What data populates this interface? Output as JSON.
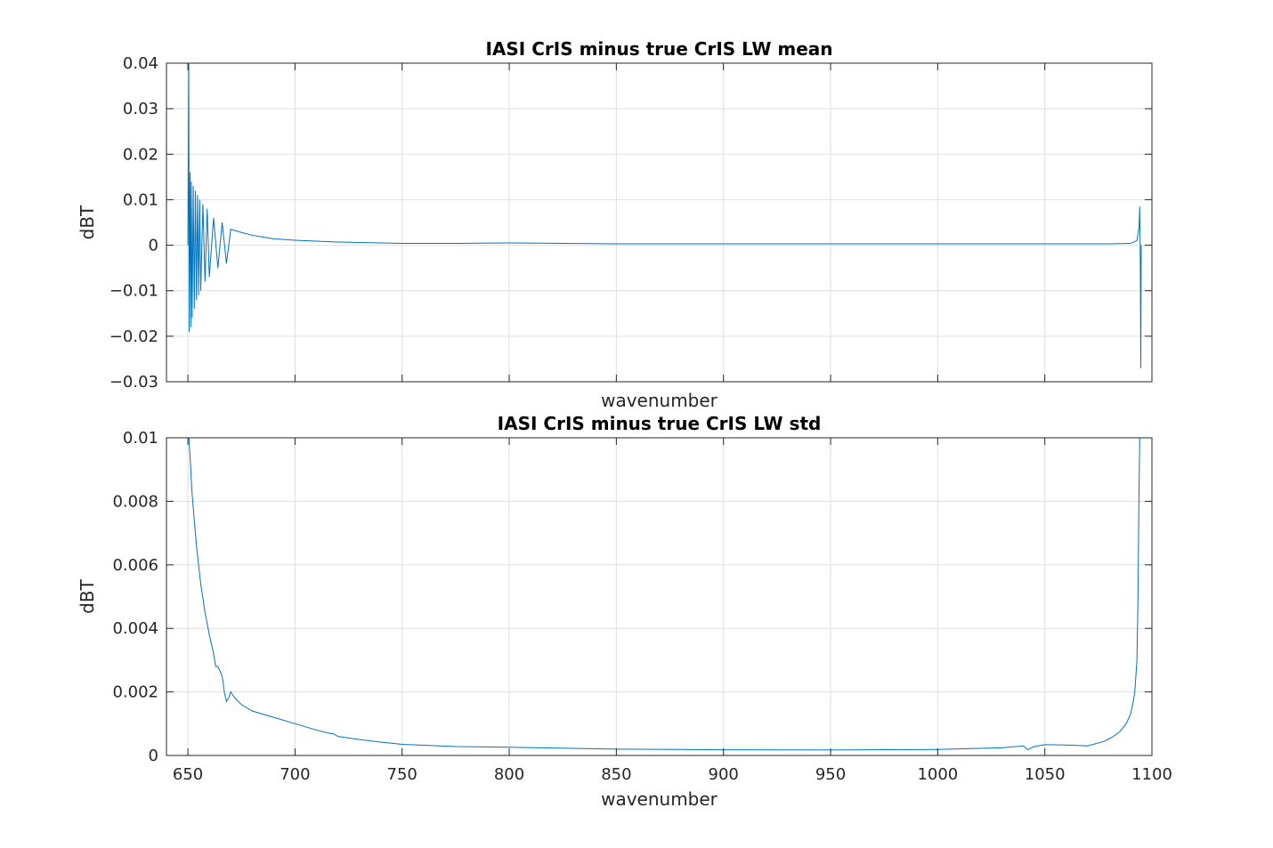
{
  "chart_data": [
    {
      "type": "line",
      "title": "IASI CrIS minus true CrIS LW mean",
      "xlabel": "wavenumber",
      "ylabel": "dBT",
      "xlim": [
        640,
        1100
      ],
      "ylim": [
        -0.03,
        0.04
      ],
      "yticks": [
        -0.03,
        -0.02,
        -0.01,
        0,
        0.01,
        0.02,
        0.03,
        0.04
      ],
      "ytick_labels": [
        "−0.03",
        "−0.02",
        "−0.01",
        "0",
        "0.01",
        "0.02",
        "0.03",
        "0.04"
      ],
      "xticks": [
        650,
        700,
        750,
        800,
        850,
        900,
        950,
        1000,
        1050,
        1100
      ],
      "xtick_labels_shown": false,
      "grid": true,
      "color": "#0072bd",
      "series": [
        {
          "x": [
            650.0,
            650.4,
            650.6,
            651.0,
            651.4,
            651.6,
            652.0,
            652.5,
            653.0,
            653.5,
            654.0,
            654.5,
            655.0,
            655.5,
            656.0,
            657.0,
            658.0,
            659.0,
            660.0,
            662.0,
            664.0,
            666.0,
            668.0,
            670.0,
            675.0,
            680.0,
            685.0,
            690.0,
            700.0,
            710.0,
            720.0,
            730.0,
            740.0,
            750.0,
            775.0,
            800.0,
            850.0,
            900.0,
            950.0,
            1000.0,
            1050.0,
            1080.0,
            1090.0,
            1093.0,
            1094.0,
            1094.3,
            1094.6,
            1094.8,
            1095.0
          ],
          "y": [
            0.0,
            0.04,
            -0.019,
            0.016,
            -0.018,
            0.014,
            -0.016,
            0.013,
            -0.014,
            0.012,
            -0.012,
            0.011,
            -0.011,
            0.01,
            -0.01,
            0.009,
            -0.008,
            0.008,
            -0.007,
            0.006,
            -0.005,
            0.005,
            -0.004,
            0.0035,
            0.0028,
            0.0022,
            0.0018,
            0.0014,
            0.0011,
            0.0009,
            0.0007,
            0.0006,
            0.0005,
            0.0004,
            0.0004,
            0.0005,
            0.0003,
            0.0003,
            0.0003,
            0.0003,
            0.0003,
            0.0003,
            0.0004,
            0.001,
            0.004,
            0.0085,
            -0.005,
            -0.027,
            0.0
          ]
        }
      ]
    },
    {
      "type": "line",
      "title": "IASI CrIS minus true CrIS LW std",
      "xlabel": "wavenumber",
      "ylabel": "dBT",
      "xlim": [
        640,
        1100
      ],
      "ylim": [
        0,
        0.01
      ],
      "yticks": [
        0,
        0.002,
        0.004,
        0.006,
        0.008,
        0.01
      ],
      "ytick_labels": [
        "0",
        "0.002",
        "0.004",
        "0.006",
        "0.008",
        "0.01"
      ],
      "xticks": [
        650,
        700,
        750,
        800,
        850,
        900,
        950,
        1000,
        1050,
        1100
      ],
      "xtick_labels": [
        "650",
        "700",
        "750",
        "800",
        "850",
        "900",
        "950",
        "1000",
        "1050",
        "1100"
      ],
      "grid": true,
      "color": "#0072bd",
      "series": [
        {
          "x": [
            650.5,
            652.0,
            654.0,
            656.0,
            658.0,
            660.0,
            662.0,
            663.0,
            664.0,
            666.0,
            667.0,
            668.0,
            669.0,
            670.0,
            672.0,
            675.0,
            680.0,
            690.0,
            700.0,
            710.0,
            716.0,
            718.0,
            720.0,
            725.0,
            730.0,
            740.0,
            750.0,
            775.0,
            800.0,
            850.0,
            900.0,
            950.0,
            1000.0,
            1030.0,
            1040.0,
            1042.0,
            1045.0,
            1050.0,
            1060.0,
            1070.0,
            1078.0,
            1082.0,
            1085.0,
            1088.0,
            1090.0,
            1091.0,
            1092.0,
            1093.0,
            1093.5,
            1094.0,
            1094.3
          ],
          "y": [
            0.01,
            0.0082,
            0.0066,
            0.0054,
            0.0045,
            0.0038,
            0.0032,
            0.0028,
            0.0028,
            0.0025,
            0.002,
            0.0017,
            0.0018,
            0.002,
            0.0018,
            0.0016,
            0.0014,
            0.0012,
            0.001,
            0.0008,
            0.0007,
            0.00068,
            0.0006,
            0.00055,
            0.0005,
            0.00042,
            0.00035,
            0.00028,
            0.00026,
            0.0002,
            0.00018,
            0.00017,
            0.00019,
            0.00024,
            0.0003,
            0.00018,
            0.00028,
            0.00034,
            0.00033,
            0.0003,
            0.00045,
            0.0006,
            0.00075,
            0.001,
            0.0013,
            0.0016,
            0.002,
            0.003,
            0.005,
            0.0085,
            0.01
          ]
        }
      ]
    }
  ]
}
